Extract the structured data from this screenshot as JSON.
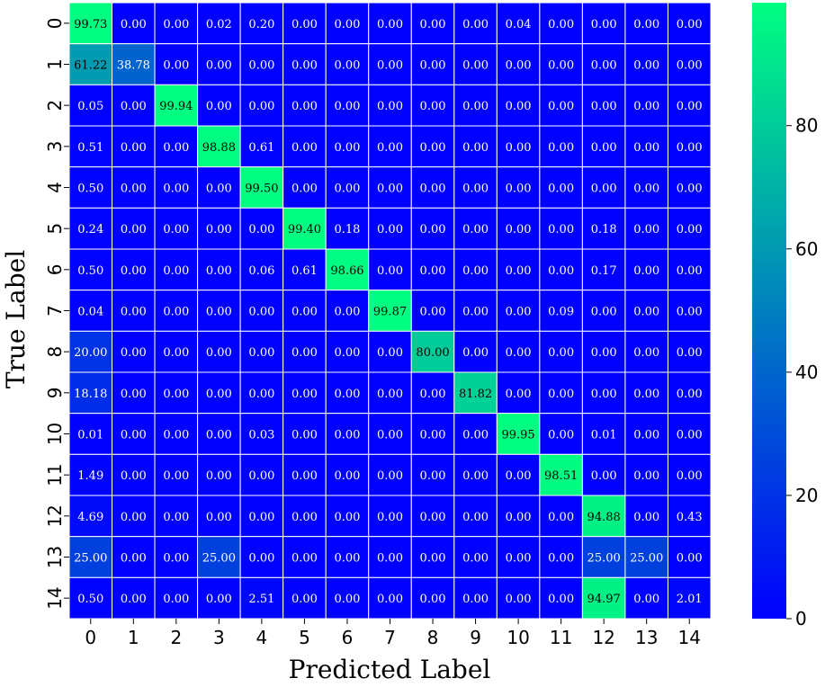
{
  "chart_data": {
    "type": "heatmap",
    "title": "",
    "xlabel": "Predicted Label",
    "ylabel": "True Label",
    "x_categories": [
      "0",
      "1",
      "2",
      "3",
      "4",
      "5",
      "6",
      "7",
      "8",
      "9",
      "10",
      "11",
      "12",
      "13",
      "14"
    ],
    "y_categories": [
      "0",
      "1",
      "2",
      "3",
      "4",
      "5",
      "6",
      "7",
      "8",
      "9",
      "10",
      "11",
      "12",
      "13",
      "14"
    ],
    "values": [
      [
        "99.73",
        "0.00",
        "0.00",
        "0.02",
        "0.20",
        "0.00",
        "0.00",
        "0.00",
        "0.00",
        "0.00",
        "0.04",
        "0.00",
        "0.00",
        "0.00",
        "0.00"
      ],
      [
        "61.22",
        "38.78",
        "0.00",
        "0.00",
        "0.00",
        "0.00",
        "0.00",
        "0.00",
        "0.00",
        "0.00",
        "0.00",
        "0.00",
        "0.00",
        "0.00",
        "0.00"
      ],
      [
        "0.05",
        "0.00",
        "99.94",
        "0.00",
        "0.00",
        "0.00",
        "0.00",
        "0.00",
        "0.00",
        "0.00",
        "0.00",
        "0.00",
        "0.00",
        "0.00",
        "0.00"
      ],
      [
        "0.51",
        "0.00",
        "0.00",
        "98.88",
        "0.61",
        "0.00",
        "0.00",
        "0.00",
        "0.00",
        "0.00",
        "0.00",
        "0.00",
        "0.00",
        "0.00",
        "0.00"
      ],
      [
        "0.50",
        "0.00",
        "0.00",
        "0.00",
        "99.50",
        "0.00",
        "0.00",
        "0.00",
        "0.00",
        "0.00",
        "0.00",
        "0.00",
        "0.00",
        "0.00",
        "0.00"
      ],
      [
        "0.24",
        "0.00",
        "0.00",
        "0.00",
        "0.00",
        "99.40",
        "0.18",
        "0.00",
        "0.00",
        "0.00",
        "0.00",
        "0.00",
        "0.18",
        "0.00",
        "0.00"
      ],
      [
        "0.50",
        "0.00",
        "0.00",
        "0.00",
        "0.06",
        "0.61",
        "98.66",
        "0.00",
        "0.00",
        "0.00",
        "0.00",
        "0.00",
        "0.17",
        "0.00",
        "0.00"
      ],
      [
        "0.04",
        "0.00",
        "0.00",
        "0.00",
        "0.00",
        "0.00",
        "0.00",
        "99.87",
        "0.00",
        "0.00",
        "0.00",
        "0.09",
        "0.00",
        "0.00",
        "0.00"
      ],
      [
        "20.00",
        "0.00",
        "0.00",
        "0.00",
        "0.00",
        "0.00",
        "0.00",
        "0.00",
        "80.00",
        "0.00",
        "0.00",
        "0.00",
        "0.00",
        "0.00",
        "0.00"
      ],
      [
        "18.18",
        "0.00",
        "0.00",
        "0.00",
        "0.00",
        "0.00",
        "0.00",
        "0.00",
        "0.00",
        "81.82",
        "0.00",
        "0.00",
        "0.00",
        "0.00",
        "0.00"
      ],
      [
        "0.01",
        "0.00",
        "0.00",
        "0.00",
        "0.03",
        "0.00",
        "0.00",
        "0.00",
        "0.00",
        "0.00",
        "99.95",
        "0.00",
        "0.01",
        "0.00",
        "0.00"
      ],
      [
        "1.49",
        "0.00",
        "0.00",
        "0.00",
        "0.00",
        "0.00",
        "0.00",
        "0.00",
        "0.00",
        "0.00",
        "0.00",
        "98.51",
        "0.00",
        "0.00",
        "0.00"
      ],
      [
        "4.69",
        "0.00",
        "0.00",
        "0.00",
        "0.00",
        "0.00",
        "0.00",
        "0.00",
        "0.00",
        "0.00",
        "0.00",
        "0.00",
        "94.88",
        "0.00",
        "0.43"
      ],
      [
        "25.00",
        "0.00",
        "0.00",
        "25.00",
        "0.00",
        "0.00",
        "0.00",
        "0.00",
        "0.00",
        "0.00",
        "0.00",
        "0.00",
        "25.00",
        "25.00",
        "0.00"
      ],
      [
        "0.50",
        "0.00",
        "0.00",
        "0.00",
        "2.51",
        "0.00",
        "0.00",
        "0.00",
        "0.00",
        "0.00",
        "0.00",
        "0.00",
        "94.97",
        "0.00",
        "2.01"
      ]
    ],
    "colormap": "winter",
    "color_low": "#0000ff",
    "color_high": "#00ff80",
    "vmin": 0,
    "vmax": 99.95,
    "colorbar_ticks": [
      "0",
      "20",
      "40",
      "60",
      "80"
    ],
    "cell_border_color": "#ffffff",
    "text_color_low": "#ffffff",
    "text_color_high": "#000000"
  }
}
